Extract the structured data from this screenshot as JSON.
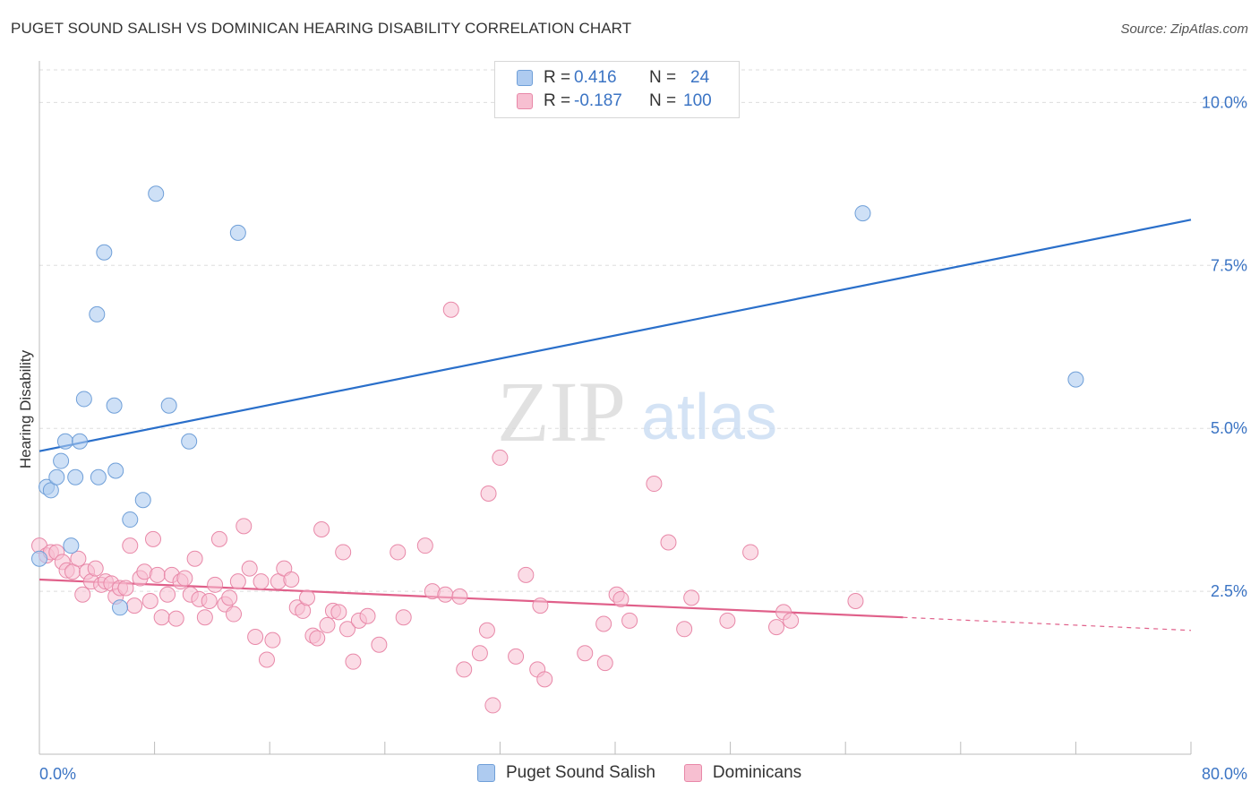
{
  "header": {
    "title": "PUGET SOUND SALISH VS DOMINICAN HEARING DISABILITY CORRELATION CHART",
    "source": "Source: ZipAtlas.com"
  },
  "watermark": {
    "zip": "ZIP",
    "atlas": "atlas"
  },
  "legend": {
    "rows": [
      {
        "r_label": "R =",
        "r_value": "0.416",
        "n_label": "N =",
        "n_value": "24",
        "color": "#a8c8f0"
      },
      {
        "r_label": "R =",
        "r_value": "-0.187",
        "n_label": "N =",
        "n_value": "100",
        "color": "#f5b8cc"
      }
    ]
  },
  "colors": {
    "blue_fill": "#aecbf0",
    "blue_stroke": "#6f9fd8",
    "blue_line": "#2a6fca",
    "pink_fill": "#f7bfd1",
    "pink_stroke": "#e888a8",
    "pink_line": "#e0608a",
    "tick_text": "#3b74c4",
    "grid": "#dddddd"
  },
  "chart_data": {
    "type": "scatter",
    "title": "PUGET SOUND SALISH VS DOMINICAN HEARING DISABILITY CORRELATION CHART",
    "xlabel": "",
    "ylabel": "Hearing Disability",
    "xlim": [
      0,
      80
    ],
    "ylim": [
      0,
      10.5
    ],
    "x_tick_labels": [
      "0.0%",
      "80.0%"
    ],
    "y_ticks": [
      2.5,
      5.0,
      7.5,
      10.0
    ],
    "y_tick_labels": [
      "2.5%",
      "5.0%",
      "7.5%",
      "10.0%"
    ],
    "grid": "horizontal dashed",
    "legend_position": "top-center",
    "series": [
      {
        "name": "Puget Sound Salish",
        "r": 0.416,
        "n": 24,
        "trend": {
          "x": [
            0,
            80
          ],
          "y": [
            4.65,
            8.2
          ]
        },
        "points": [
          [
            0.0,
            3.0
          ],
          [
            0.5,
            4.1
          ],
          [
            0.8,
            4.05
          ],
          [
            1.2,
            4.25
          ],
          [
            1.5,
            4.5
          ],
          [
            1.8,
            4.8
          ],
          [
            2.2,
            3.2
          ],
          [
            2.5,
            4.25
          ],
          [
            2.8,
            4.8
          ],
          [
            3.1,
            5.45
          ],
          [
            4.0,
            6.75
          ],
          [
            4.1,
            4.25
          ],
          [
            4.5,
            7.7
          ],
          [
            5.2,
            5.35
          ],
          [
            5.3,
            4.35
          ],
          [
            5.6,
            2.25
          ],
          [
            6.3,
            3.6
          ],
          [
            7.2,
            3.9
          ],
          [
            8.1,
            8.6
          ],
          [
            9.0,
            5.35
          ],
          [
            10.4,
            4.8
          ],
          [
            13.8,
            8.0
          ],
          [
            57.2,
            8.3
          ],
          [
            72.0,
            5.75
          ]
        ]
      },
      {
        "name": "Dominicans",
        "r": -0.187,
        "n": 100,
        "trend": {
          "x": [
            0,
            60
          ],
          "y": [
            2.68,
            2.1
          ]
        },
        "trend_dashed": {
          "x": [
            60,
            80
          ],
          "y": [
            2.1,
            1.9
          ]
        },
        "points": [
          [
            0.0,
            3.2
          ],
          [
            0.5,
            3.05
          ],
          [
            0.8,
            3.1
          ],
          [
            1.2,
            3.1
          ],
          [
            1.6,
            2.95
          ],
          [
            1.9,
            2.82
          ],
          [
            2.3,
            2.8
          ],
          [
            2.7,
            3.0
          ],
          [
            3.0,
            2.45
          ],
          [
            3.3,
            2.8
          ],
          [
            3.6,
            2.65
          ],
          [
            3.9,
            2.85
          ],
          [
            4.3,
            2.6
          ],
          [
            4.6,
            2.65
          ],
          [
            5.0,
            2.62
          ],
          [
            5.3,
            2.42
          ],
          [
            5.6,
            2.55
          ],
          [
            6.0,
            2.55
          ],
          [
            6.3,
            3.2
          ],
          [
            6.6,
            2.28
          ],
          [
            7.0,
            2.7
          ],
          [
            7.3,
            2.8
          ],
          [
            7.7,
            2.35
          ],
          [
            7.9,
            3.3
          ],
          [
            8.2,
            2.75
          ],
          [
            8.5,
            2.1
          ],
          [
            8.9,
            2.45
          ],
          [
            9.2,
            2.75
          ],
          [
            9.5,
            2.08
          ],
          [
            9.8,
            2.65
          ],
          [
            10.1,
            2.7
          ],
          [
            10.5,
            2.45
          ],
          [
            10.8,
            3.0
          ],
          [
            11.1,
            2.38
          ],
          [
            11.5,
            2.1
          ],
          [
            11.8,
            2.35
          ],
          [
            12.2,
            2.6
          ],
          [
            12.5,
            3.3
          ],
          [
            12.9,
            2.3
          ],
          [
            13.2,
            2.4
          ],
          [
            13.5,
            2.15
          ],
          [
            13.8,
            2.65
          ],
          [
            14.2,
            3.5
          ],
          [
            14.6,
            2.85
          ],
          [
            15.0,
            1.8
          ],
          [
            15.4,
            2.65
          ],
          [
            15.8,
            1.45
          ],
          [
            16.2,
            1.75
          ],
          [
            16.6,
            2.65
          ],
          [
            17.0,
            2.85
          ],
          [
            17.5,
            2.68
          ],
          [
            17.9,
            2.25
          ],
          [
            18.3,
            2.2
          ],
          [
            18.6,
            2.4
          ],
          [
            19.0,
            1.82
          ],
          [
            19.3,
            1.78
          ],
          [
            19.6,
            3.45
          ],
          [
            20.0,
            1.98
          ],
          [
            20.4,
            2.2
          ],
          [
            20.8,
            2.18
          ],
          [
            21.1,
            3.1
          ],
          [
            21.4,
            1.92
          ],
          [
            21.8,
            1.42
          ],
          [
            22.2,
            2.05
          ],
          [
            22.8,
            2.12
          ],
          [
            23.6,
            1.68
          ],
          [
            24.9,
            3.1
          ],
          [
            25.3,
            2.1
          ],
          [
            26.8,
            3.2
          ],
          [
            27.3,
            2.5
          ],
          [
            28.2,
            2.45
          ],
          [
            28.6,
            6.82
          ],
          [
            29.2,
            2.42
          ],
          [
            29.5,
            1.3
          ],
          [
            30.6,
            1.55
          ],
          [
            31.1,
            1.9
          ],
          [
            31.2,
            4.0
          ],
          [
            31.5,
            0.75
          ],
          [
            32.0,
            4.55
          ],
          [
            33.1,
            1.5
          ],
          [
            33.8,
            2.75
          ],
          [
            34.6,
            1.3
          ],
          [
            34.8,
            2.28
          ],
          [
            35.1,
            1.15
          ],
          [
            37.9,
            1.55
          ],
          [
            39.2,
            2.0
          ],
          [
            39.3,
            1.4
          ],
          [
            40.1,
            2.45
          ],
          [
            40.4,
            2.38
          ],
          [
            41.0,
            2.05
          ],
          [
            42.7,
            4.15
          ],
          [
            43.7,
            3.25
          ],
          [
            44.8,
            1.92
          ],
          [
            45.3,
            2.4
          ],
          [
            47.8,
            2.05
          ],
          [
            49.4,
            3.1
          ],
          [
            51.2,
            1.95
          ],
          [
            51.7,
            2.18
          ],
          [
            52.2,
            2.05
          ],
          [
            56.7,
            2.35
          ]
        ]
      }
    ]
  },
  "bottom_legend": [
    {
      "label": "Puget Sound Salish",
      "color": "#aecbf0"
    },
    {
      "label": "Dominicans",
      "color": "#f7bfd1"
    }
  ]
}
